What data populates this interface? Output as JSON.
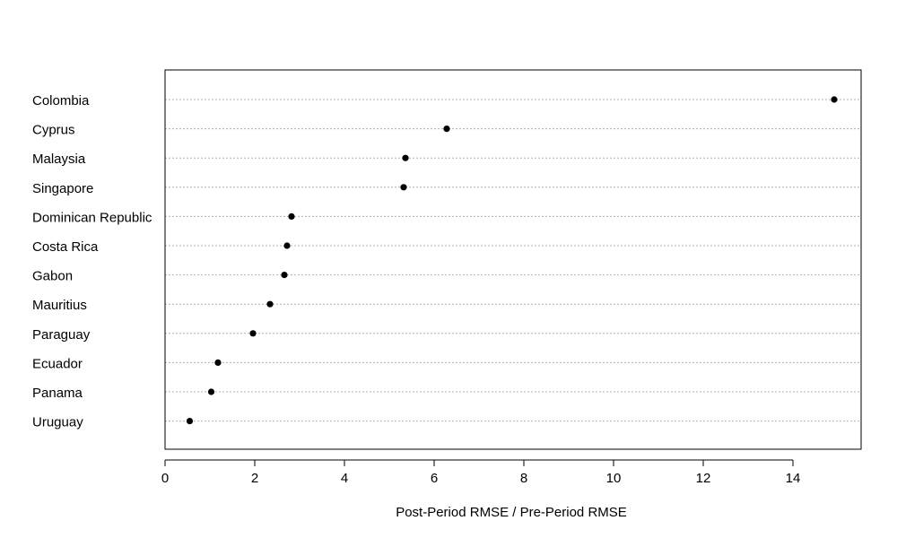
{
  "chart_data": {
    "type": "scatter",
    "subtype": "dot-plot",
    "title": "",
    "xlabel": "Post-Period RMSE / Pre-Period RMSE",
    "ylabel": "",
    "xlim": [
      0,
      15.5
    ],
    "xticks": [
      "0",
      "2",
      "4",
      "6",
      "8",
      "10",
      "12",
      "14"
    ],
    "grid": "dotted horizontal guide lines",
    "legend": "none",
    "categories": [
      "Colombia",
      "Cyprus",
      "Malaysia",
      "Singapore",
      "Dominican Republic",
      "Costa Rica",
      "Gabon",
      "Mauritius",
      "Paraguay",
      "Ecuador",
      "Panama",
      "Uruguay"
    ],
    "values": [
      14.92,
      6.28,
      5.36,
      5.32,
      2.82,
      2.72,
      2.66,
      2.34,
      1.96,
      1.18,
      1.03,
      0.55
    ],
    "marker_color": "#000000",
    "guide_color": "#b0b0b0"
  }
}
